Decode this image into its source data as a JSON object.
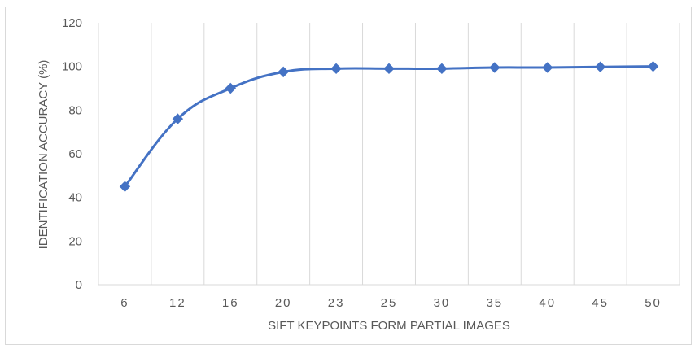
{
  "chart_data": {
    "type": "line",
    "categories": [
      "6",
      "12",
      "16",
      "20",
      "23",
      "25",
      "30",
      "35",
      "40",
      "45",
      "50"
    ],
    "series": [
      {
        "values": [
          45,
          76,
          90,
          97.5,
          99,
          99,
          99,
          99.5,
          99.5,
          99.8,
          100
        ]
      }
    ],
    "title": "",
    "xlabel": "SIFT KEYPOINTS  FORM PARTIAL IMAGES",
    "ylabel": "IDENTIFICATION ACCURACY  (%)",
    "ylim": [
      0,
      120
    ],
    "yticks": [
      0,
      20,
      40,
      60,
      80,
      100,
      120
    ],
    "grid": "vertical",
    "legend": "none",
    "colors": {
      "line": "#4472c4",
      "marker": "#4472c4",
      "grid": "#d9d9d9",
      "text": "#595959"
    },
    "marker": "diamond"
  }
}
